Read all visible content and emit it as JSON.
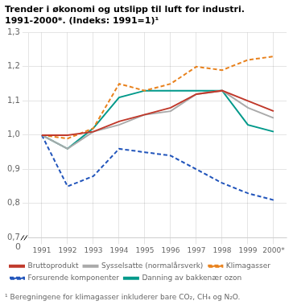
{
  "chart_data": {
    "type": "line",
    "title": [
      "Trender i økonomi og utslipp til luft for industri.",
      "1991-2000*. (Indeks: 1991=1)¹"
    ],
    "footnote": "¹ Beregningene for klimagasser inkluderer bare CO₂, CH₄ og N₂O.",
    "annotations": [
      "0"
    ],
    "categories": [
      "1991",
      "1992",
      "1993",
      "1994",
      "1995",
      "1996",
      "1997",
      "1998",
      "1999",
      "2000*"
    ],
    "series": [
      {
        "name": "Bruttoprodukt",
        "color": "#c0392b",
        "line_style": "solid",
        "values": [
          1.0,
          1.0,
          1.01,
          1.04,
          1.06,
          1.08,
          1.12,
          1.13,
          1.1,
          1.07
        ]
      },
      {
        "name": "Sysselsatte (normalårsverk)",
        "color": "#aaaaaa",
        "line_style": "solid",
        "values": [
          1.0,
          0.96,
          1.01,
          1.03,
          1.06,
          1.07,
          1.12,
          1.13,
          1.08,
          1.05
        ]
      },
      {
        "name": "Klimagasser",
        "color": "#e8821e",
        "line_style": "dashed",
        "values": [
          1.0,
          0.99,
          1.02,
          1.15,
          1.13,
          1.15,
          1.2,
          1.19,
          1.22,
          1.23
        ]
      },
      {
        "name": "Forsurende komponenter",
        "color": "#2255bb",
        "line_style": "dashed",
        "values": [
          1.0,
          0.85,
          0.88,
          0.96,
          0.95,
          0.94,
          0.9,
          0.86,
          0.83,
          0.81
        ]
      },
      {
        "name": "Danning av bakkenær ozon",
        "color": "#00998a",
        "line_style": "solid",
        "values": [
          1.0,
          0.96,
          1.02,
          1.11,
          1.13,
          1.13,
          1.13,
          1.13,
          1.03,
          1.01
        ]
      }
    ],
    "ylim": [
      0.7,
      1.3
    ],
    "yticks": [
      {
        "value": 0.7,
        "label": "0,7"
      },
      {
        "value": 0.8,
        "label": "0,8"
      },
      {
        "value": 0.9,
        "label": "0,9"
      },
      {
        "value": 1.0,
        "label": "1,0"
      },
      {
        "value": 1.1,
        "label": "1,1"
      },
      {
        "value": 1.2,
        "label": "1,2"
      },
      {
        "value": 1.3,
        "label": "1,3"
      }
    ],
    "grid": true,
    "legend": "bottom"
  }
}
